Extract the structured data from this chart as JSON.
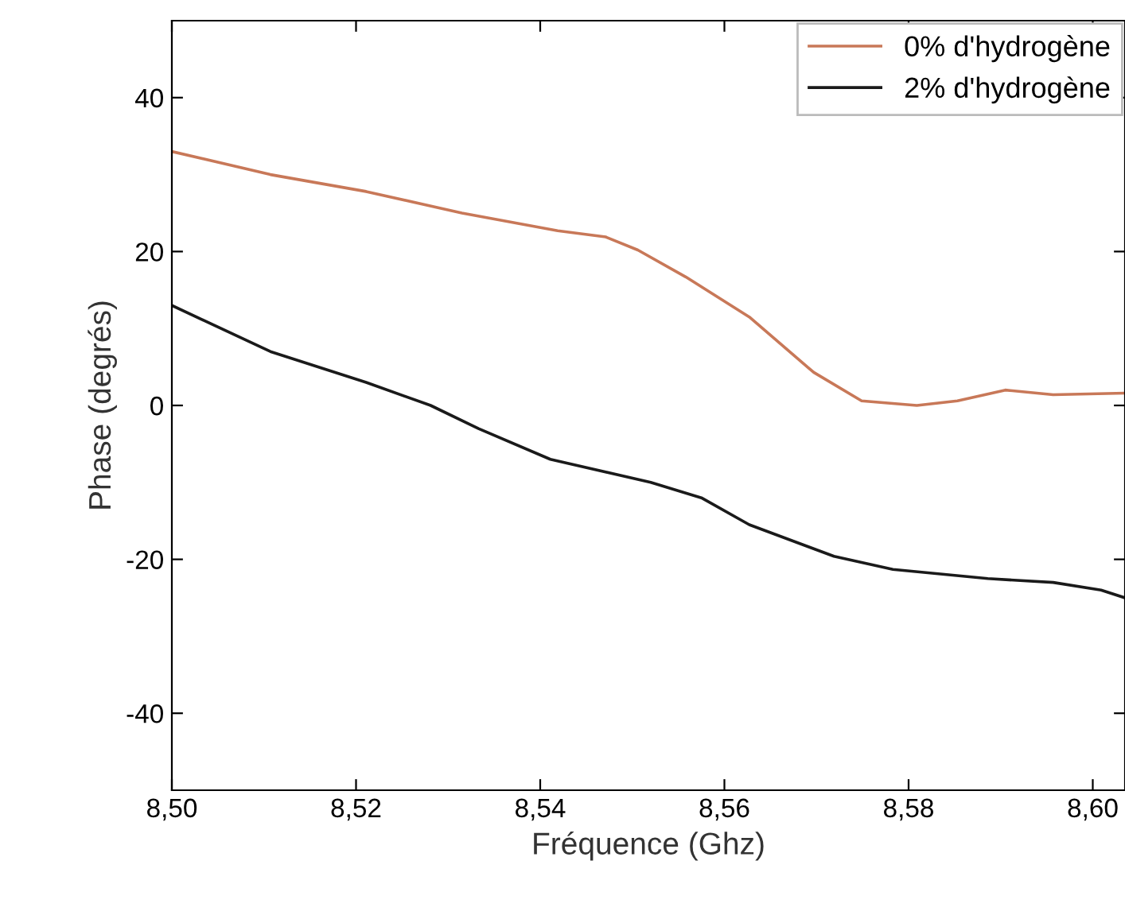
{
  "chart_data": {
    "type": "line",
    "xlabel": "Fréquence (Ghz)",
    "ylabel": "Phase (degrés)",
    "xlim": [
      8.5,
      8.6035
    ],
    "ylim": [
      -50,
      50
    ],
    "xticks": [
      {
        "value": 8.5,
        "label": "8,50"
      },
      {
        "value": 8.52,
        "label": "8,52"
      },
      {
        "value": 8.54,
        "label": "8,54"
      },
      {
        "value": 8.56,
        "label": "8,56"
      },
      {
        "value": 8.58,
        "label": "8,58"
      },
      {
        "value": 8.6,
        "label": "8,60"
      }
    ],
    "yticks": [
      -40,
      -20,
      0,
      20,
      40
    ],
    "grid": false,
    "legend": "top right",
    "line_style": "solid",
    "marker": "none",
    "series": [
      {
        "name": "0% d'hydrogène",
        "color": "#c87858",
        "x": [
          8.5,
          8.5107,
          8.5211,
          8.5315,
          8.5419,
          8.5471,
          8.5506,
          8.5558,
          8.5627,
          8.5697,
          8.5749,
          8.5809,
          8.5853,
          8.5905,
          8.5957,
          8.6035
        ],
        "values": [
          33,
          30,
          27.8,
          25,
          22.7,
          21.9,
          20.2,
          16.7,
          11.5,
          4.3,
          0.6,
          0,
          0.6,
          2,
          1.4,
          1.6
        ]
      },
      {
        "name": "2% d'hydrogène",
        "color": "#1a1a1a",
        "x": [
          8.5,
          8.5107,
          8.5211,
          8.5281,
          8.5333,
          8.5411,
          8.552,
          8.5575,
          8.5627,
          8.5719,
          8.5783,
          8.5886,
          8.5957,
          8.6009,
          8.6035
        ],
        "values": [
          13,
          7,
          3,
          0,
          -3,
          -7,
          -10,
          -12,
          -15.5,
          -19.6,
          -21.3,
          -22.5,
          -23,
          -24,
          -25
        ]
      }
    ]
  }
}
